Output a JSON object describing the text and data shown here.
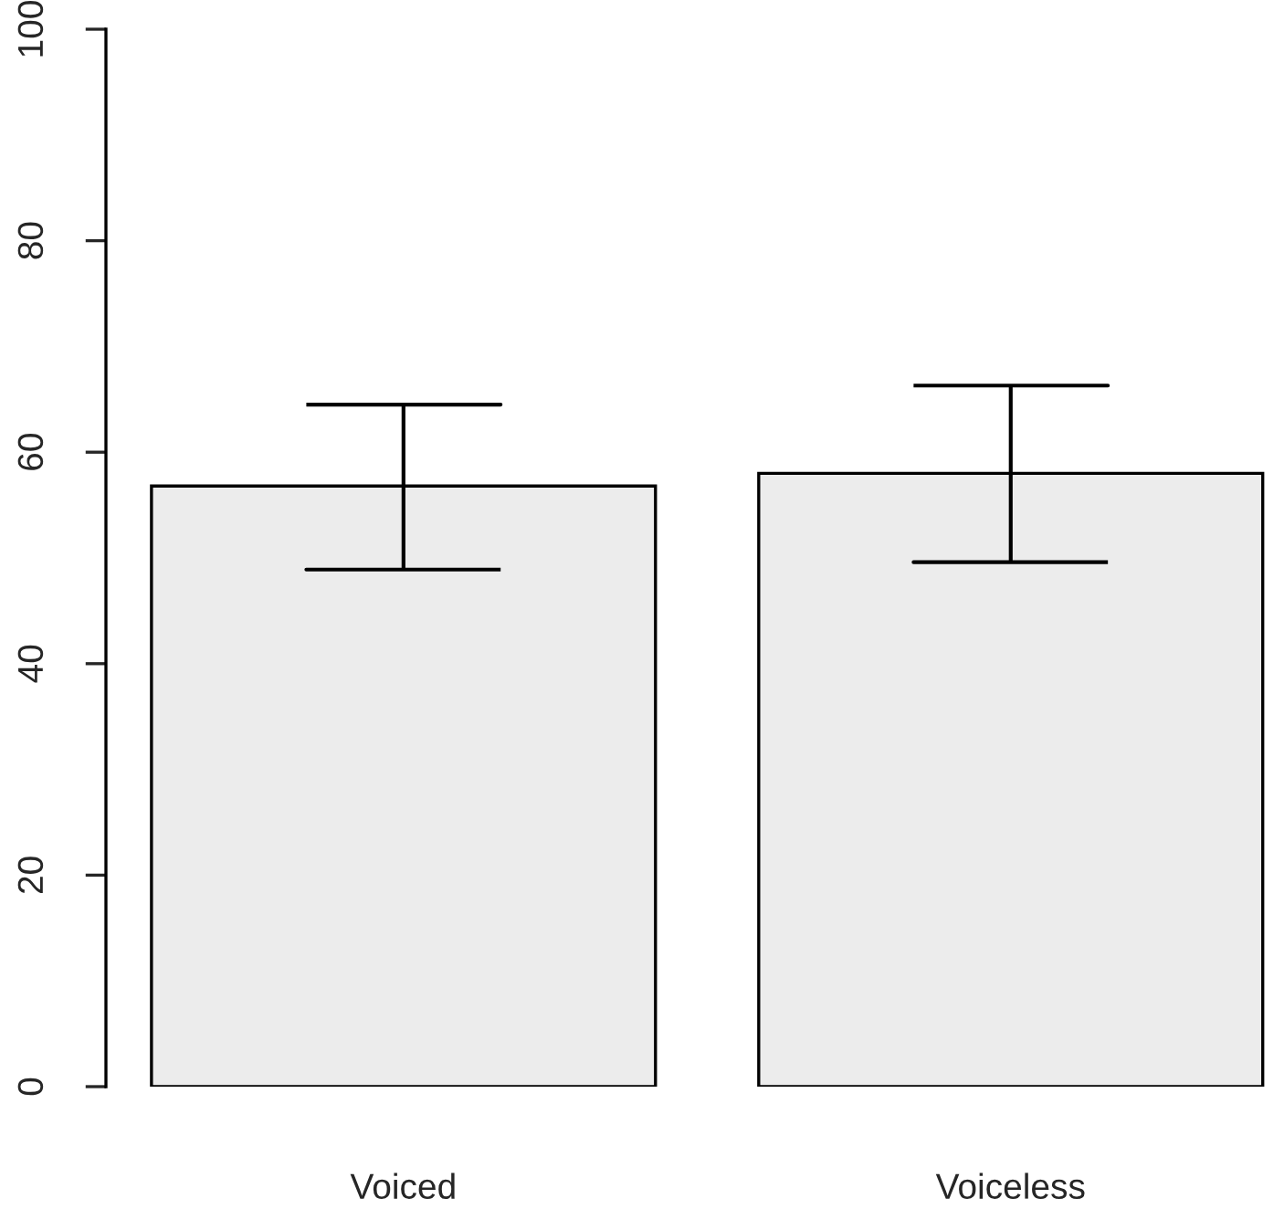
{
  "chart_data": {
    "type": "bar",
    "categories": [
      "Voiced",
      "Voiceless"
    ],
    "values": [
      56.8,
      58.0
    ],
    "errors": [
      [
        48.9,
        64.5
      ],
      [
        49.6,
        66.3
      ]
    ],
    "color": "#ececec",
    "ylim": [
      0,
      100
    ],
    "yticks": [
      0,
      20,
      40,
      60,
      80,
      100
    ],
    "grid": false
  }
}
